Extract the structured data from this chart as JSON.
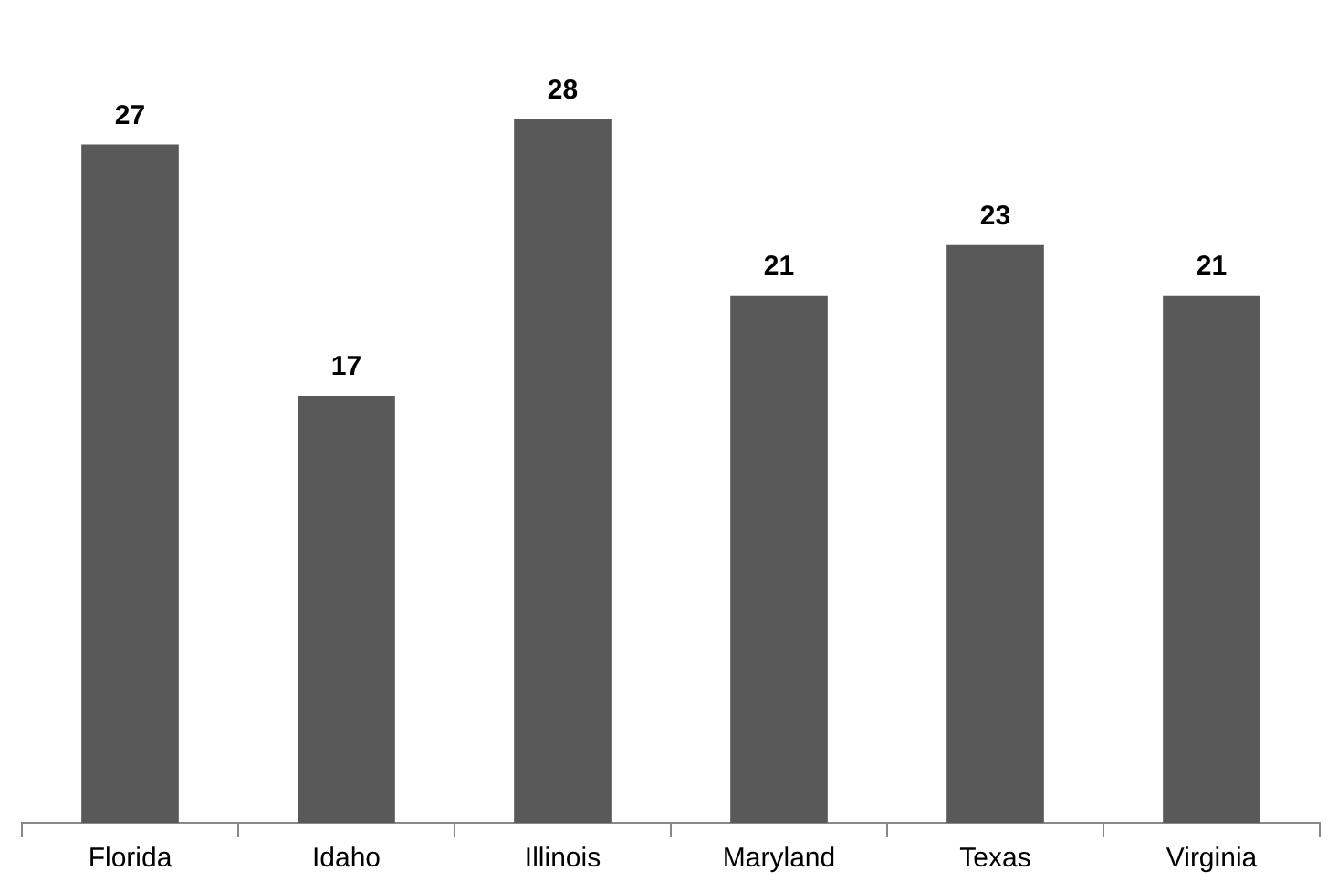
{
  "chart_data": {
    "type": "bar",
    "categories": [
      "Florida",
      "Idaho",
      "Illinois",
      "Maryland",
      "Texas",
      "Virginia"
    ],
    "values": [
      27,
      17,
      28,
      21,
      23,
      21
    ],
    "color": "#595959",
    "data_labels": true,
    "grid": false,
    "legend": false
  }
}
